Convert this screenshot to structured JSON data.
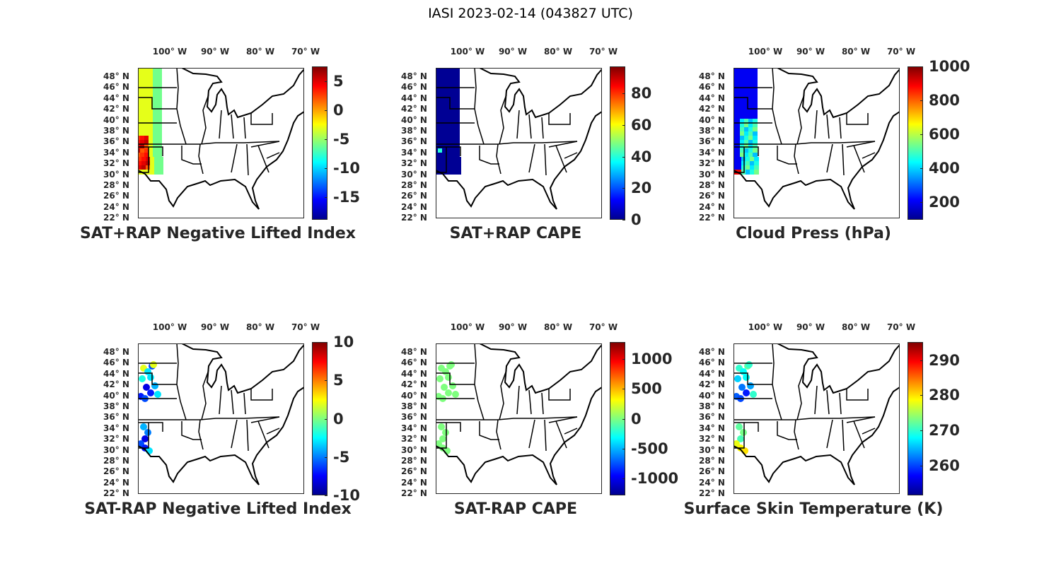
{
  "figure_title": "IASI 2023-02-14 (043827 UTC)",
  "lon_labels": [
    "100° W",
    "90° W",
    "80° W",
    "70° W"
  ],
  "lat_labels": [
    "48° N",
    "46° N",
    "44° N",
    "42° N",
    "40° N",
    "38° N",
    "36° N",
    "34° N",
    "32° N",
    "30° N",
    "28° N",
    "26° N",
    "24° N",
    "22° N"
  ],
  "colormap": "jet",
  "chart_data": [
    {
      "type": "map",
      "title": "SAT+RAP Negative Lifted Index",
      "colorbar": {
        "range": [
          -18.9,
          7.6
        ],
        "ticks": [
          "5",
          "0",
          "-5",
          "-10",
          "-15"
        ]
      },
      "swath": "western strip, values mostly -5 to 2, locally ~5 over NM"
    },
    {
      "type": "map",
      "title": "SAT+RAP CAPE",
      "colorbar": {
        "range": [
          0,
          97
        ],
        "ticks": [
          "80",
          "60",
          "40",
          "20",
          "0"
        ]
      },
      "swath": "western strip, values ~0"
    },
    {
      "type": "map",
      "title": "Cloud Press (hPa)",
      "colorbar": {
        "range": [
          97,
          1000
        ],
        "ticks": [
          "1000",
          "800",
          "600",
          "400",
          "200"
        ]
      },
      "swath": "western strip, values ~200-500"
    },
    {
      "type": "map",
      "title": "SAT-RAP Negative Lifted Index",
      "colorbar": {
        "range": [
          -10,
          10
        ],
        "ticks": [
          "10",
          "5",
          "0",
          "-5",
          "-10"
        ]
      },
      "swath": "scattered points, values ~-8 to 3"
    },
    {
      "type": "map",
      "title": "SAT-RAP CAPE",
      "colorbar": {
        "range": [
          -1290,
          1290
        ],
        "ticks": [
          "1000",
          "500",
          "0",
          "-500",
          "-1000"
        ]
      },
      "swath": "scattered points, values ~0"
    },
    {
      "type": "map",
      "title": "Surface Skin Temperature (K)",
      "colorbar": {
        "range": [
          251.5,
          295.2
        ],
        "ticks": [
          "290",
          "280",
          "270",
          "260"
        ]
      },
      "swath": "scattered points, values ~258-280"
    }
  ]
}
